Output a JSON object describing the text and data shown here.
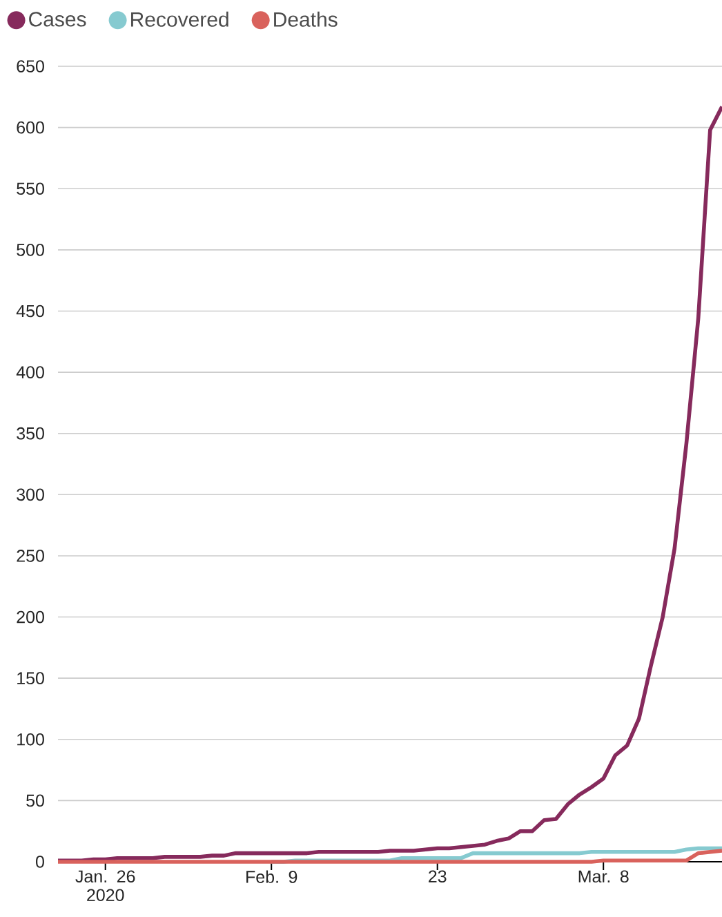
{
  "chart_data": {
    "type": "line",
    "x": [
      "2020-01-22",
      "2020-01-23",
      "2020-01-24",
      "2020-01-25",
      "2020-01-26",
      "2020-01-27",
      "2020-01-28",
      "2020-01-29",
      "2020-01-30",
      "2020-01-31",
      "2020-02-01",
      "2020-02-02",
      "2020-02-03",
      "2020-02-04",
      "2020-02-05",
      "2020-02-06",
      "2020-02-07",
      "2020-02-08",
      "2020-02-09",
      "2020-02-10",
      "2020-02-11",
      "2020-02-12",
      "2020-02-13",
      "2020-02-14",
      "2020-02-15",
      "2020-02-16",
      "2020-02-17",
      "2020-02-18",
      "2020-02-19",
      "2020-02-20",
      "2020-02-21",
      "2020-02-22",
      "2020-02-23",
      "2020-02-24",
      "2020-02-25",
      "2020-02-26",
      "2020-02-27",
      "2020-02-28",
      "2020-02-29",
      "2020-03-01",
      "2020-03-02",
      "2020-03-03",
      "2020-03-04",
      "2020-03-05",
      "2020-03-06",
      "2020-03-07",
      "2020-03-08",
      "2020-03-09",
      "2020-03-10",
      "2020-03-11",
      "2020-03-12",
      "2020-03-13",
      "2020-03-14",
      "2020-03-15",
      "2020-03-16",
      "2020-03-17",
      "2020-03-18"
    ],
    "series": [
      {
        "name": "Cases",
        "color": "#862a5c",
        "values": [
          1,
          1,
          1,
          2,
          2,
          3,
          3,
          3,
          3,
          4,
          4,
          4,
          4,
          5,
          5,
          7,
          7,
          7,
          7,
          7,
          7,
          7,
          8,
          8,
          8,
          8,
          8,
          8,
          9,
          9,
          9,
          10,
          11,
          11,
          12,
          13,
          14,
          17,
          19,
          25,
          25,
          34,
          35,
          47,
          55,
          61,
          68,
          87,
          95,
          117,
          160,
          200,
          256,
          342,
          444,
          598,
          617
        ]
      },
      {
        "name": "Recovered",
        "color": "#86cad0",
        "values": [
          null,
          null,
          null,
          null,
          null,
          null,
          null,
          null,
          null,
          null,
          null,
          null,
          null,
          null,
          null,
          null,
          null,
          null,
          0,
          0,
          1,
          1,
          1,
          1,
          1,
          1,
          1,
          1,
          1,
          3,
          3,
          3,
          3,
          3,
          3,
          7,
          7,
          7,
          7,
          7,
          7,
          7,
          7,
          7,
          7,
          8,
          8,
          8,
          8,
          8,
          8,
          8,
          8,
          10,
          11,
          11,
          11
        ]
      },
      {
        "name": "Deaths",
        "color": "#d9625c",
        "values": [
          0,
          0,
          0,
          0,
          0,
          0,
          0,
          0,
          0,
          0,
          0,
          0,
          0,
          0,
          0,
          0,
          0,
          0,
          0,
          0,
          0,
          0,
          0,
          0,
          0,
          0,
          0,
          0,
          0,
          0,
          0,
          0,
          0,
          0,
          0,
          0,
          0,
          0,
          0,
          0,
          0,
          0,
          0,
          0,
          0,
          0,
          1,
          1,
          1,
          1,
          1,
          1,
          1,
          1,
          7,
          8,
          9
        ]
      }
    ],
    "xlim": [
      "2020-01-22",
      "2020-03-18"
    ],
    "xticks": [
      {
        "value": "2020-01-26",
        "label": "Jan. 26 2020"
      },
      {
        "value": "2020-02-09",
        "label": "Feb. 9"
      },
      {
        "value": "2020-02-23",
        "label": "23"
      },
      {
        "value": "2020-03-08",
        "label": "Mar. 8"
      }
    ],
    "ylim": [
      0,
      650
    ],
    "yticks": [
      0,
      50,
      100,
      150,
      200,
      250,
      300,
      350,
      400,
      450,
      500,
      550,
      600,
      650
    ],
    "grid": "y",
    "legend": "top left",
    "line_style": "solid"
  }
}
